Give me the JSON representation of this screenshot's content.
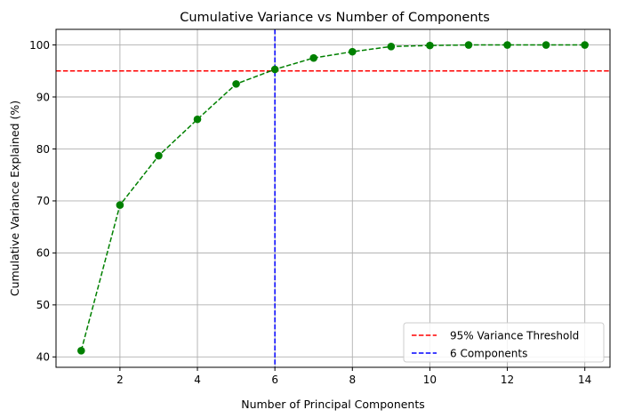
{
  "chart_data": {
    "type": "line",
    "title": "Cumulative Variance vs Number of Components",
    "xlabel": "Number of Principal Components",
    "ylabel": "Cumulative Variance Explained (%)",
    "xlim": [
      0.35,
      14.65
    ],
    "ylim": [
      38.0,
      103.0
    ],
    "xticks": [
      2,
      4,
      6,
      8,
      10,
      12,
      14
    ],
    "yticks": [
      40,
      50,
      60,
      70,
      80,
      90,
      100
    ],
    "grid": true,
    "legend_position": "bottom-right",
    "colors": {
      "series": "#008000",
      "threshold": "#ff0000",
      "components": "#0000ff",
      "grid": "#b0b0b0"
    },
    "series": [
      {
        "x": [
          1,
          2,
          3,
          4,
          5,
          6,
          7,
          8,
          9,
          10,
          11,
          12,
          13,
          14
        ],
        "values": [
          41.2,
          69.2,
          78.7,
          85.7,
          92.5,
          95.3,
          97.5,
          98.7,
          99.7,
          99.9,
          100.0,
          100.0,
          100.0,
          100.0
        ],
        "style": "dashed-marker"
      }
    ],
    "reference_lines": [
      {
        "orientation": "horizontal",
        "value": 95,
        "label": "95% Variance Threshold",
        "color": "#ff0000"
      },
      {
        "orientation": "vertical",
        "value": 6,
        "label": "6 Components",
        "color": "#0000ff"
      }
    ]
  }
}
